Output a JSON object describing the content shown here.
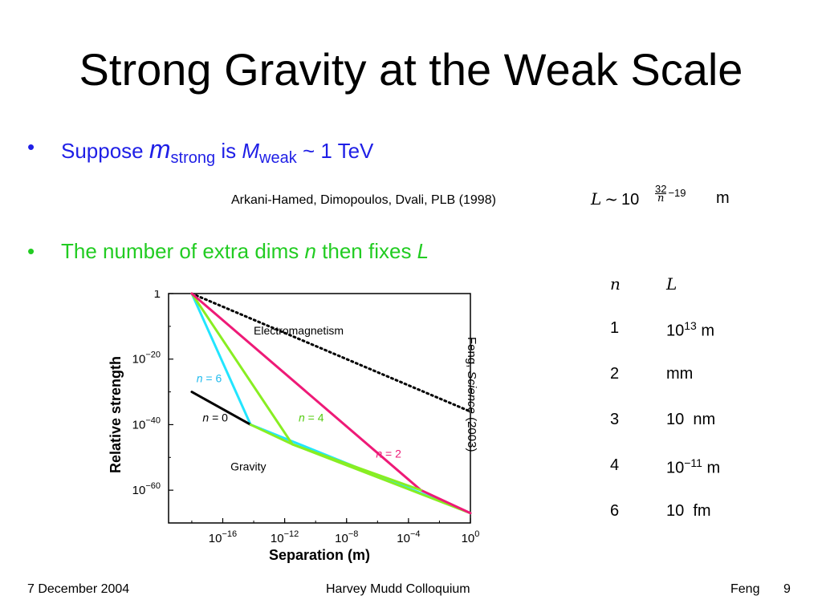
{
  "slide": {
    "title": "Strong Gravity at the Weak Scale",
    "bullet_char": "•",
    "bullet1": {
      "pre": "Suppose ",
      "m": "m",
      "strong": "strong",
      "is": " is ",
      "M": "M",
      "weak": "weak",
      "post": " ~ 1 TeV",
      "color": "#1f1fe6"
    },
    "citation": "Arkani-Hamed, Dimopoulos, Dvali, PLB (1998)",
    "formula": {
      "L": "L",
      "sim": "~",
      "base": "10",
      "num": "32",
      "den": "n",
      "rest": "−19",
      "unit": "m"
    },
    "bullet2": {
      "pre": "The number of extra dims ",
      "n": "n",
      "mid": " then fixes ",
      "L": "L",
      "color": "#22cc22"
    },
    "side_citation": {
      "pre": "Feng, ",
      "journal": "Science",
      "post": " (2003)"
    },
    "table": {
      "headers": [
        "n",
        "L"
      ],
      "rows": [
        {
          "n": "1",
          "L": "10",
          "sup": "13",
          "unit": " m"
        },
        {
          "n": "2",
          "L": "mm",
          "sup": "",
          "unit": ""
        },
        {
          "n": "3",
          "L": "10  nm",
          "sup": "",
          "unit": ""
        },
        {
          "n": "4",
          "L": "10",
          "sup": "−11",
          "unit": " m"
        },
        {
          "n": "6",
          "L": "10  fm",
          "sup": "",
          "unit": ""
        }
      ]
    }
  },
  "footer": {
    "date": "7 December 2004",
    "event": "Harvey Mudd Colloquium",
    "author": "Feng",
    "page": "9"
  },
  "chart_data": {
    "type": "line",
    "xlabel": "Separation (m)",
    "ylabel": "Relative strength",
    "x_scale": "log10",
    "y_scale": "log10",
    "xlim": [
      -19.5,
      0
    ],
    "ylim": [
      -70,
      0
    ],
    "x_ticks": [
      {
        "base": "10",
        "exp": "−16",
        "value": -16
      },
      {
        "base": "10",
        "exp": "−12",
        "value": -12
      },
      {
        "base": "10",
        "exp": "−8",
        "value": -8
      },
      {
        "base": "10",
        "exp": "−4",
        "value": -4
      },
      {
        "base": "10",
        "exp": "0",
        "value": 0
      }
    ],
    "y_ticks": [
      {
        "base": "1",
        "exp": "",
        "value": 0
      },
      {
        "base": "10",
        "exp": "−20",
        "value": -20
      },
      {
        "base": "10",
        "exp": "−40",
        "value": -40
      },
      {
        "base": "10",
        "exp": "−60",
        "value": -60
      }
    ],
    "series": [
      {
        "name": "Electromagnetism",
        "color": "#000000",
        "dotted": true,
        "points": [
          [
            -18,
            0
          ],
          [
            0,
            -36
          ]
        ]
      },
      {
        "name": "n = 6",
        "color": "#22e5ff",
        "points": [
          [
            -18,
            0
          ],
          [
            -14.2,
            -40
          ],
          [
            0,
            -67
          ]
        ]
      },
      {
        "name": "n = 4",
        "color": "#88ee22",
        "points": [
          [
            -18,
            0
          ],
          [
            -11.5,
            -46
          ],
          [
            0,
            -67
          ]
        ]
      },
      {
        "name": "n = 2",
        "color": "#ee1a77",
        "points": [
          [
            -18,
            0
          ],
          [
            -3.2,
            -60
          ],
          [
            0,
            -67
          ]
        ]
      },
      {
        "name": "n = 0",
        "color": "#000000",
        "points": [
          [
            -18,
            -30
          ],
          [
            -14.2,
            -40
          ]
        ]
      },
      {
        "name": "Gravity",
        "color": "#88ee22",
        "points": [
          [
            -14.2,
            -40
          ],
          [
            -11.5,
            -46
          ],
          [
            -3.2,
            -60
          ]
        ]
      }
    ],
    "labels": [
      {
        "text": "Electromagnetism",
        "color": "#000000",
        "x": -14.0,
        "y": -12.5,
        "italic_n": false
      },
      {
        "text": "n = 6",
        "color": "#22bbee",
        "x": -17.7,
        "y": -27.0,
        "italic_n": true
      },
      {
        "text": "n = 0",
        "color": "#000000",
        "x": -17.3,
        "y": -39.0,
        "italic_n": true
      },
      {
        "text": "n = 4",
        "color": "#55cc11",
        "x": -11.1,
        "y": -39.0,
        "italic_n": true
      },
      {
        "text": "n = 2",
        "color": "#ee1a77",
        "x": -6.1,
        "y": -50.0,
        "italic_n": true
      },
      {
        "text": "Gravity",
        "color": "#000000",
        "x": -15.5,
        "y": -54.0,
        "italic_n": false
      }
    ]
  }
}
